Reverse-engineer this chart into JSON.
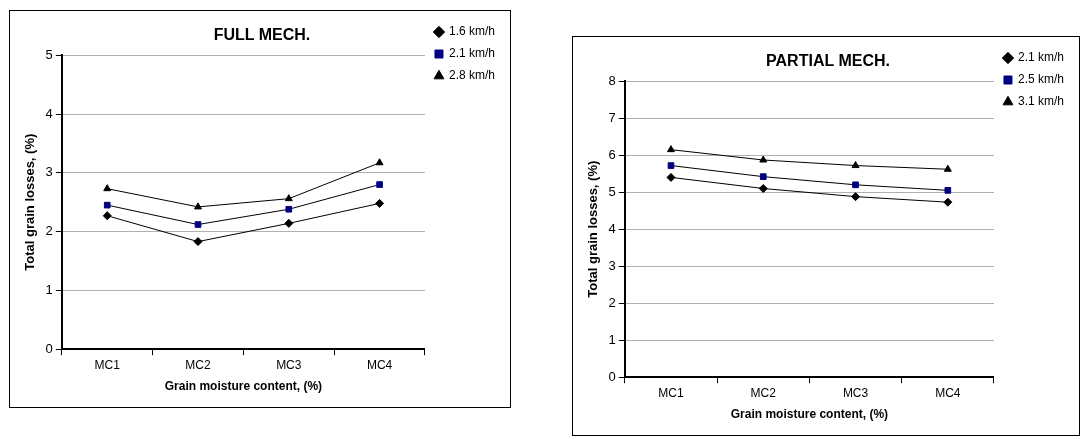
{
  "chart_data": [
    {
      "type": "line",
      "title": "FULL MECH.",
      "xlabel": "Grain moisture content, (%)",
      "ylabel": "Total grain losses, (%)",
      "categories": [
        "MC1",
        "MC2",
        "MC3",
        "MC4"
      ],
      "ylim": [
        0,
        5
      ],
      "yticks": [
        0,
        1,
        2,
        3,
        4,
        5
      ],
      "grid": "y",
      "legend": "top right",
      "series": [
        {
          "name": "1.6 km/h",
          "color": "#000000",
          "marker": "diamond",
          "values": [
            2.27,
            1.83,
            2.14,
            2.48
          ]
        },
        {
          "name": "2.1 km/h",
          "color": "#000080",
          "marker": "square",
          "values": [
            2.45,
            2.12,
            2.38,
            2.8
          ]
        },
        {
          "name": "2.8 km/h",
          "color": "#000000",
          "marker": "triangle",
          "values": [
            2.73,
            2.42,
            2.56,
            3.17
          ]
        }
      ]
    },
    {
      "type": "line",
      "title": "PARTIAL MECH.",
      "xlabel": "Grain moisture content, (%)",
      "ylabel": "Total grain losses, (%)",
      "categories": [
        "MC1",
        "MC2",
        "MC3",
        "MC4"
      ],
      "ylim": [
        0,
        8
      ],
      "yticks": [
        0,
        1,
        2,
        3,
        4,
        5,
        6,
        7,
        8
      ],
      "grid": "y",
      "legend": "top right",
      "series": [
        {
          "name": "2.1 km/h",
          "color": "#000000",
          "marker": "diamond",
          "values": [
            5.4,
            5.1,
            4.88,
            4.73
          ]
        },
        {
          "name": "2.5 km/h",
          "color": "#000080",
          "marker": "square",
          "values": [
            5.72,
            5.42,
            5.2,
            5.05
          ]
        },
        {
          "name": "3.1 km/h",
          "color": "#000000",
          "marker": "triangle",
          "values": [
            6.15,
            5.87,
            5.72,
            5.62
          ]
        }
      ]
    }
  ]
}
